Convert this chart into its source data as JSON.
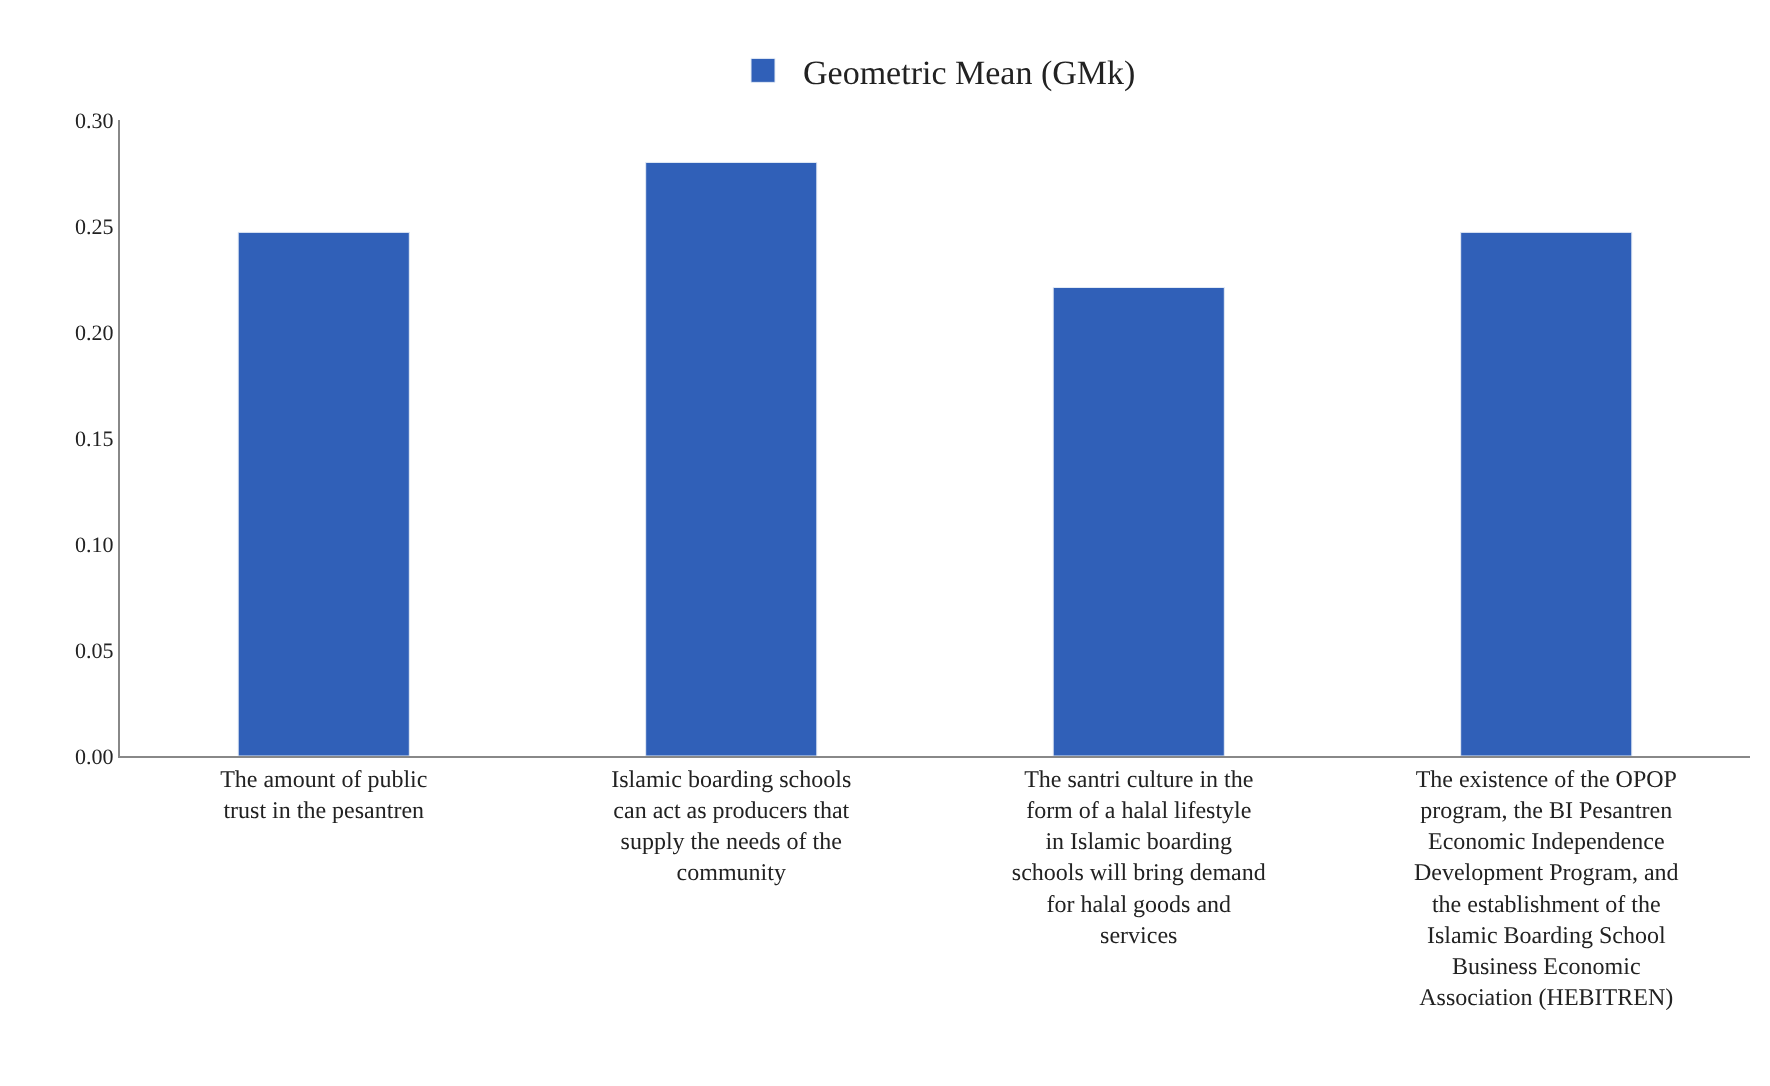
{
  "chart_data": {
    "type": "bar",
    "categories": [
      "The amount of public trust in the pesantren",
      "Islamic boarding schools can act as producers that supply the needs of the community",
      "The santri culture in the form of a halal lifestyle in Islamic boarding schools will bring demand for halal goods and services",
      "The existence of the OPOP program, the BI Pesantren Economic Independence Development Program, and the establishment of the Islamic Boarding School Business Economic Association (HEBITREN)"
    ],
    "series": [
      {
        "name": "Geometric Mean (GMk)",
        "color": "#3060b8",
        "values": [
          0.247,
          0.28,
          0.221,
          0.247
        ]
      }
    ],
    "ylim": [
      0,
      0.3
    ],
    "yticks": [
      {
        "value": 0,
        "label": "0.00"
      },
      {
        "value": 0.05,
        "label": "0.05"
      },
      {
        "value": 0.1,
        "label": "0.10"
      },
      {
        "value": 0.15,
        "label": "0.15"
      },
      {
        "value": 0.2,
        "label": "0.20"
      },
      {
        "value": 0.25,
        "label": "0.25"
      },
      {
        "value": 0.3,
        "label": "0.30"
      }
    ],
    "legend": "top"
  }
}
